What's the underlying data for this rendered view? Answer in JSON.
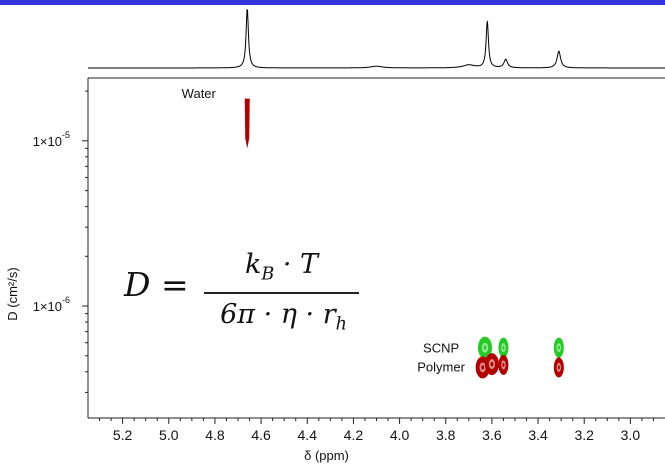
{
  "accent_bar_color": "#3333dd",
  "chart_data": [
    {
      "type": "line",
      "panel": "1D 1H NMR spectrum (top projection)",
      "xlim": [
        5.35,
        2.85
      ],
      "x_direction": "reversed",
      "peaks": [
        {
          "ppm": 4.66,
          "relative_height": 1.0
        },
        {
          "ppm": 4.1,
          "relative_height": 0.03
        },
        {
          "ppm": 3.7,
          "relative_height": 0.05
        },
        {
          "ppm": 3.62,
          "relative_height": 0.78
        },
        {
          "ppm": 3.54,
          "relative_height": 0.14
        },
        {
          "ppm": 3.31,
          "relative_height": 0.28
        }
      ],
      "color": "#000000"
    },
    {
      "type": "scatter",
      "panel": "DOSY 2D",
      "xlabel": "δ (ppm)",
      "ylabel": "D (cm²/s)",
      "xlim": [
        5.35,
        2.85
      ],
      "ylim": [
        2.1e-07,
        2.4e-05
      ],
      "yscale": "log",
      "x_direction": "reversed",
      "xticks": [
        5.2,
        5.0,
        4.8,
        4.6,
        4.4,
        4.2,
        4.0,
        3.8,
        3.6,
        3.4,
        3.2,
        3.0
      ],
      "xtick_labels": [
        "5.2",
        "5.0",
        "4.8",
        "4.6",
        "4.4",
        "4.2",
        "4.0",
        "3.8",
        "3.6",
        "3.4",
        "3.2",
        "3.0"
      ],
      "yticks": [
        1e-05,
        1e-06
      ],
      "ytick_labels": [
        "1×10",
        "1×10"
      ],
      "ytick_exponents": [
        "-5",
        "-6"
      ],
      "series": [
        {
          "name": "Water",
          "color": "#b30000",
          "points": [
            {
              "ppm": 4.66,
              "D": 1.35e-05,
              "D_min": 9e-06,
              "D_max": 1.8e-05
            }
          ]
        },
        {
          "name": "SCNP",
          "color": "#22cc22",
          "points": [
            {
              "ppm": 3.63,
              "D": 5.6e-07
            },
            {
              "ppm": 3.55,
              "D": 5.6e-07
            },
            {
              "ppm": 3.31,
              "D": 5.6e-07
            }
          ]
        },
        {
          "name": "Polymer",
          "color": "#b30000",
          "points": [
            {
              "ppm": 3.64,
              "D": 4.25e-07
            },
            {
              "ppm": 3.6,
              "D": 4.45e-07
            },
            {
              "ppm": 3.55,
              "D": 4.4e-07
            },
            {
              "ppm": 3.31,
              "D": 4.25e-07
            }
          ]
        }
      ],
      "annotations": [
        {
          "text": "Water",
          "ppm": 4.87,
          "D": 1.95e-05
        },
        {
          "text": "SCNP",
          "ppm": 3.82,
          "D": 5.6e-07
        },
        {
          "text": "Polymer",
          "ppm": 3.82,
          "D": 4.3e-07
        }
      ]
    }
  ],
  "equation": {
    "lhs": "D =",
    "numerator": "k_B · T",
    "denominator": "6π · η · r_h"
  }
}
